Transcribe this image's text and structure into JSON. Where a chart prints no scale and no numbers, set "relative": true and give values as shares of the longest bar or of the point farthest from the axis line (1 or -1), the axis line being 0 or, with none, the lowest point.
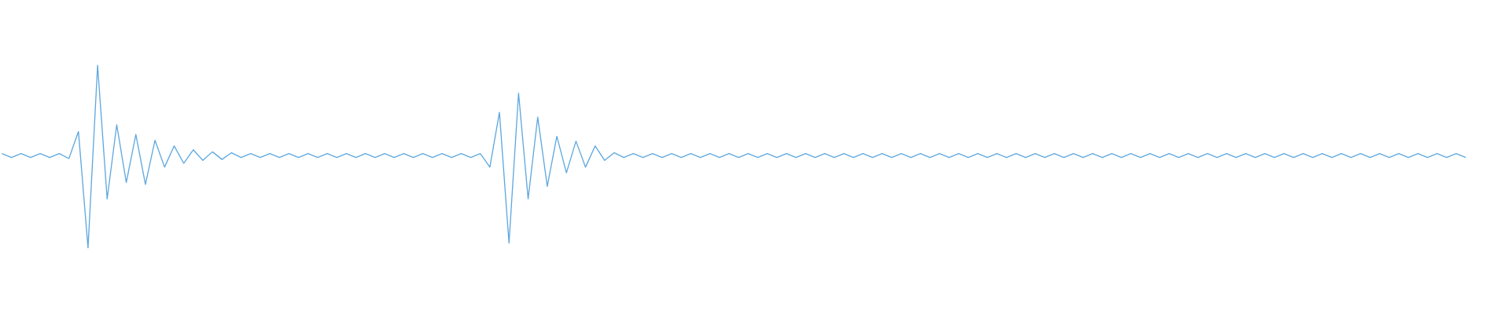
{
  "chart_data": {
    "type": "line",
    "relative": true,
    "color": "#5fa8df",
    "categories": [
      null,
      null,
      null,
      null,
      null,
      null,
      null,
      null,
      null,
      null,
      null,
      null,
      null,
      null,
      null,
      null,
      null,
      null,
      null,
      null,
      null,
      null,
      null,
      null,
      null,
      null,
      null,
      null,
      null,
      null,
      null,
      null,
      null,
      null,
      null,
      null,
      null,
      null,
      null,
      null,
      null,
      null,
      null,
      null,
      null,
      null,
      null,
      null,
      null,
      null,
      null,
      null,
      null,
      null,
      null,
      null,
      null,
      null,
      null,
      null,
      null,
      null,
      null,
      null,
      null,
      null,
      null,
      null,
      null,
      null,
      null,
      null,
      null,
      null,
      null,
      null,
      null,
      null,
      null,
      null,
      null,
      null,
      null,
      null,
      null,
      null,
      null,
      null,
      null,
      null,
      null,
      null,
      null,
      null,
      null,
      null,
      null,
      null,
      null,
      null,
      null,
      null,
      null,
      null,
      null,
      null,
      null,
      null,
      null,
      null,
      null,
      null,
      null,
      null,
      null,
      null,
      null,
      null,
      null,
      null,
      null,
      null,
      null,
      null,
      null,
      null,
      null,
      null,
      null,
      null,
      null,
      null,
      null,
      null,
      null,
      null,
      null,
      null,
      null,
      null,
      null,
      null,
      null,
      null,
      null,
      null,
      null,
      null,
      null,
      null,
      null,
      null,
      null,
      null
    ],
    "values": [
      0.516,
      0.495,
      0.516,
      0.495,
      0.516,
      0.495,
      0.516,
      0.489,
      0.637,
      0,
      1,
      0.268,
      0.674,
      0.358,
      0.621,
      0.347,
      0.589,
      0.442,
      0.558,
      0.463,
      0.537,
      0.479,
      0.526,
      0.484,
      0.521,
      0.495,
      0.516,
      0.495,
      0.516,
      0.495,
      0.516,
      0.495,
      0.516,
      0.495,
      0.516,
      0.495,
      0.516,
      0.495,
      0.516,
      0.495,
      0.516,
      0.495,
      0.516,
      0.495,
      0.516,
      0.495,
      0.516,
      0.495,
      0.516,
      0.495,
      0.516,
      0.442,
      0.742,
      0.026,
      0.847,
      0.268,
      0.716,
      0.337,
      0.611,
      0.411,
      0.584,
      0.442,
      0.558,
      0.479,
      0.521,
      0.495,
      0.516,
      0.495,
      0.516,
      0.495,
      0.516,
      0.495,
      0.516,
      0.495,
      0.516,
      0.495,
      0.516,
      0.495,
      0.516,
      0.495,
      0.516,
      0.495,
      0.516,
      0.495,
      0.516,
      0.495,
      0.516,
      0.495,
      0.516,
      0.495,
      0.516,
      0.495,
      0.516,
      0.495,
      0.516,
      0.495,
      0.516,
      0.495,
      0.516,
      0.495,
      0.516,
      0.495,
      0.516,
      0.495,
      0.516,
      0.495,
      0.516,
      0.495,
      0.516,
      0.495,
      0.516,
      0.495,
      0.516,
      0.495,
      0.516,
      0.495,
      0.516,
      0.495,
      0.516,
      0.495,
      0.516,
      0.495,
      0.516,
      0.495,
      0.516,
      0.495,
      0.516,
      0.495,
      0.516,
      0.495,
      0.516,
      0.495,
      0.516,
      0.495,
      0.516,
      0.495,
      0.516,
      0.495,
      0.516,
      0.495,
      0.516,
      0.495,
      0.516,
      0.495,
      0.516,
      0.495,
      0.516,
      0.495,
      0.516,
      0.495,
      0.516,
      0.495,
      0.516,
      0.495
    ]
  }
}
